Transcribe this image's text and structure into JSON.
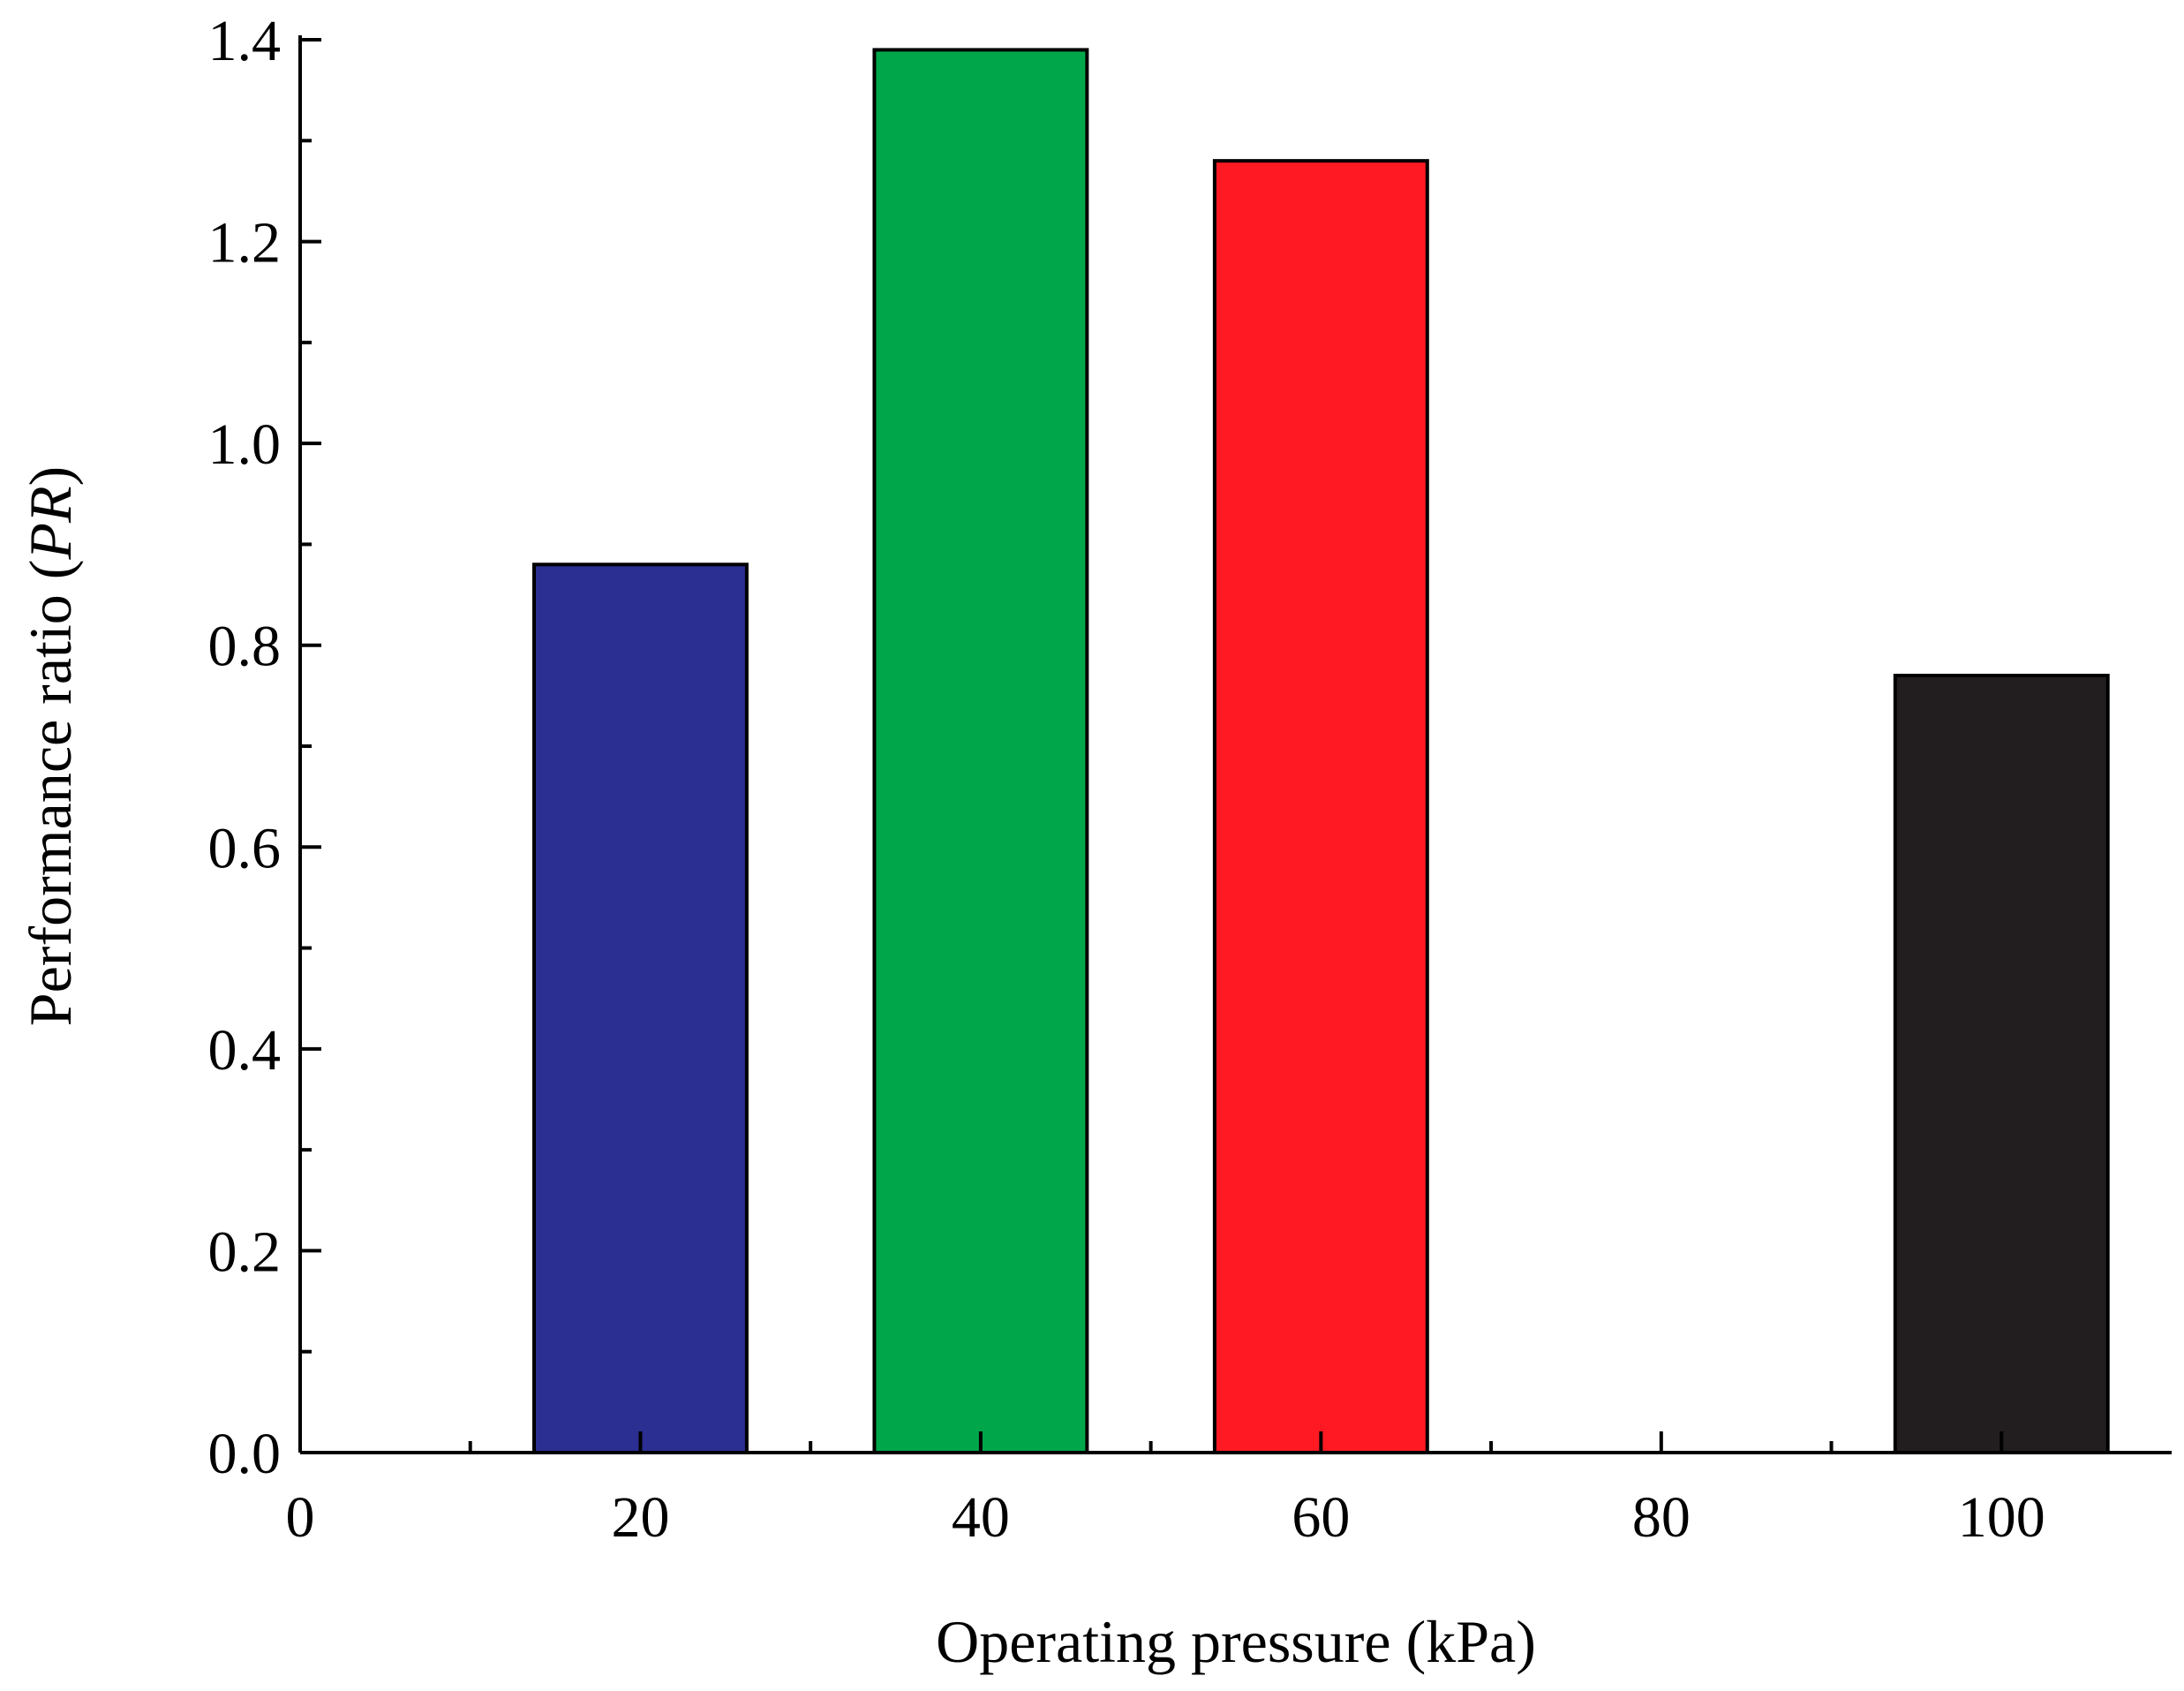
{
  "chart_data": {
    "type": "bar",
    "x": [
      20,
      40,
      60,
      100
    ],
    "values": [
      0.88,
      1.39,
      1.28,
      0.77
    ],
    "bar_colors": [
      "#2B2F92",
      "#00A74A",
      "#FF1A23",
      "#221E1F"
    ],
    "bar_width": 12.5,
    "xlim": [
      0,
      110
    ],
    "ylim": [
      0,
      1.4
    ],
    "xticks": [
      0,
      20,
      40,
      60,
      80,
      100
    ],
    "xticks_minor": [
      10,
      30,
      50,
      70,
      90
    ],
    "yticks": [
      0.0,
      0.2,
      0.4,
      0.6,
      0.8,
      1.0,
      1.2,
      1.4
    ],
    "yticks_minor": [
      0.1,
      0.3,
      0.5,
      0.7,
      0.9,
      1.1,
      1.3
    ],
    "xtick_labels": [
      "0",
      "20",
      "40",
      "60",
      "80",
      "100"
    ],
    "ytick_labels": [
      "0.0",
      "0.2",
      "0.4",
      "0.6",
      "0.8",
      "1.0",
      "1.2",
      "1.4"
    ],
    "xlabel": "Operating pressure (kPa)",
    "ylabel_main": "Performance  ratio (",
    "ylabel_italic": "PR",
    "ylabel_close": ")",
    "grid": false
  }
}
